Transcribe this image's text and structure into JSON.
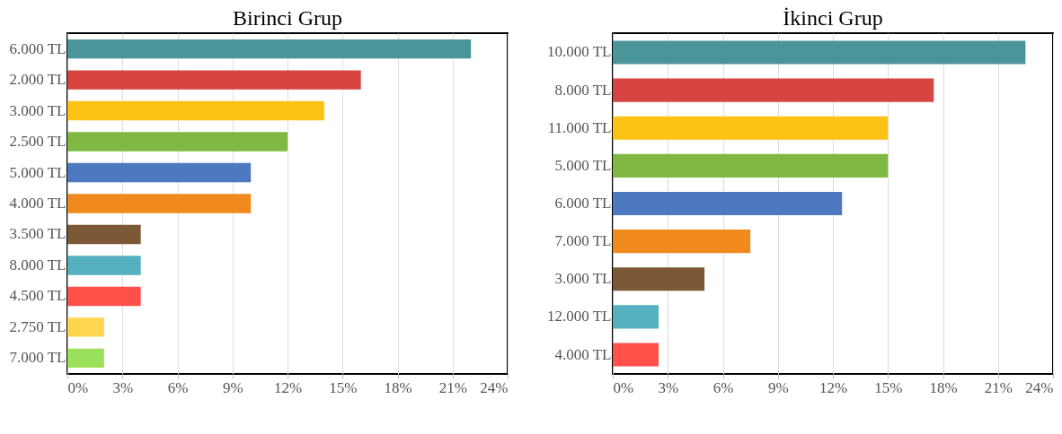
{
  "chart_data": [
    {
      "type": "bar",
      "orientation": "horizontal",
      "title": "Birinci Grup",
      "grid": "x",
      "categories": [
        "6.000 TL",
        "2.000 TL",
        "3.000 TL",
        "2.500 TL",
        "5.000 TL",
        "4.000 TL",
        "3.500 TL",
        "8.000 TL",
        "4.500 TL",
        "2.750 TL",
        "7.000 TL"
      ],
      "values": [
        22,
        16,
        14,
        12,
        10,
        10,
        4,
        4,
        4,
        2,
        2
      ],
      "colors": [
        "#4a9599",
        "#d64541",
        "#fdc216",
        "#7fb843",
        "#4d79c0",
        "#f08a1e",
        "#7b5836",
        "#55b0c0",
        "#ff504a",
        "#ffd54f",
        "#9be05a"
      ],
      "xlim": [
        0,
        24
      ],
      "xticks": [
        {
          "value": 0,
          "label": "0%"
        },
        {
          "value": 3,
          "label": "3%"
        },
        {
          "value": 6,
          "label": "6%"
        },
        {
          "value": 9,
          "label": "9%"
        },
        {
          "value": 12,
          "label": "12%"
        },
        {
          "value": 15,
          "label": "15%"
        },
        {
          "value": 18,
          "label": "18%"
        },
        {
          "value": 21,
          "label": "21%"
        },
        {
          "value": 24,
          "label": "24%"
        }
      ]
    },
    {
      "type": "bar",
      "orientation": "horizontal",
      "title": "İkinci Grup",
      "grid": "x",
      "categories": [
        "10.000 TL",
        "8.000 TL",
        "11.000 TL",
        "5.000 TL",
        "6.000 TL",
        "7.000 TL",
        "3.000 TL",
        "12.000 TL",
        "4.000 TL"
      ],
      "values": [
        22.5,
        17.5,
        15,
        15,
        12.5,
        7.5,
        5,
        2.5,
        2.5
      ],
      "colors": [
        "#4a9599",
        "#d64541",
        "#fdc216",
        "#7fb843",
        "#4d79c0",
        "#f08a1e",
        "#7b5836",
        "#55b0c0",
        "#ff504a"
      ],
      "xlim": [
        0,
        24
      ],
      "xticks": [
        {
          "value": 0,
          "label": "0%"
        },
        {
          "value": 3,
          "label": "3%"
        },
        {
          "value": 6,
          "label": "6%"
        },
        {
          "value": 9,
          "label": "9%"
        },
        {
          "value": 12,
          "label": "12%"
        },
        {
          "value": 15,
          "label": "15%"
        },
        {
          "value": 18,
          "label": "18%"
        },
        {
          "value": 21,
          "label": "21%"
        },
        {
          "value": 24,
          "label": "24%"
        }
      ]
    }
  ]
}
